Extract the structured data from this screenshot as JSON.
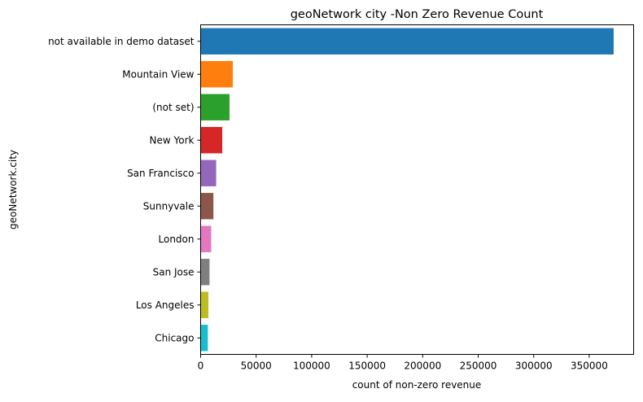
{
  "chart_data": {
    "type": "bar",
    "orientation": "horizontal",
    "title": "geoNetwork city -Non Zero Revenue Count",
    "xlabel": "count of non-zero revenue",
    "ylabel": "geoNetwork.city",
    "xlim": [
      0,
      390000
    ],
    "xticks": [
      0,
      50000,
      100000,
      150000,
      200000,
      250000,
      300000,
      350000
    ],
    "grid": false,
    "legend": "none",
    "categories": [
      "not available in demo dataset",
      "Mountain View",
      "(not set)",
      "New York",
      "San Francisco",
      "Sunnyvale",
      "London",
      "San Jose",
      "Los Angeles",
      "Chicago"
    ],
    "values": [
      372000,
      29000,
      26000,
      19500,
      14000,
      11500,
      9500,
      8000,
      7000,
      6500
    ],
    "colors": [
      "#1f77b4",
      "#ff7f0e",
      "#2ca02c",
      "#d62728",
      "#9467bd",
      "#8c564b",
      "#e377c2",
      "#7f7f7f",
      "#bcbd22",
      "#17becf"
    ]
  }
}
